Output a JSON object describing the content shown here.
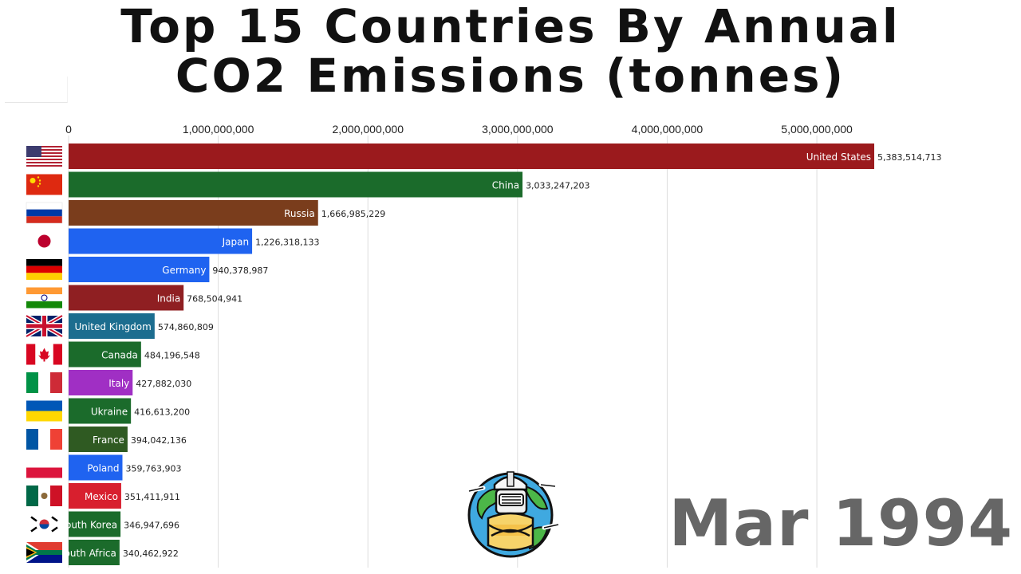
{
  "title_line1": "Top 15 Countries By Annual",
  "title_line2": "CO2 Emissions (tonnes)",
  "date_label": "Mar 1994",
  "colors": {
    "dark_red": "#9b1a1d",
    "green": "#1b6b2b",
    "brown": "#7a3d1c",
    "blue": "#1f63f0",
    "steel_blue": "#1c6d8f",
    "purple": "#a02fc4",
    "olive_green": "#2f5a22",
    "red": "#d81f2e",
    "grid": "#dddddd",
    "date": "#666666"
  },
  "chart_data": {
    "type": "bar",
    "orientation": "horizontal",
    "title": "Top 15 Countries By Annual CO2 Emissions (tonnes)",
    "xlim": [
      0,
      5383514713
    ],
    "x_ticks": [
      0,
      1000000000,
      2000000000,
      3000000000,
      4000000000,
      5000000000
    ],
    "x_tick_labels": [
      "0",
      "1,000,000,000",
      "2,000,000,000",
      "3,000,000,000",
      "4,000,000,000",
      "5,000,000,000"
    ],
    "grid": true,
    "categories": [
      "United States",
      "China",
      "Russia",
      "Japan",
      "Germany",
      "India",
      "United Kingdom",
      "Canada",
      "Italy",
      "Ukraine",
      "France",
      "Poland",
      "Mexico",
      "South Korea",
      "South Africa"
    ],
    "values": [
      5383514713,
      3033247203,
      1666985229,
      1226318133,
      940378987,
      768504941,
      574860809,
      484196548,
      427882030,
      416613200,
      394042136,
      359763903,
      351411911,
      346947696,
      340462922
    ],
    "value_labels": [
      "5,383,514,713",
      "3,033,247,203",
      "1,666,985,229",
      "1,226,318,133",
      "940,378,987",
      "768,504,941",
      "574,860,809",
      "484,196,548",
      "427,882,030",
      "416,613,200",
      "394,042,136",
      "359,763,903",
      "351,411,911",
      "346,947,696",
      "340,462,922"
    ],
    "bar_colors": [
      "#9b1a1d",
      "#1b6b2b",
      "#7a3d1c",
      "#1f63f0",
      "#1f63f0",
      "#8f1f22",
      "#1c6d8f",
      "#1b6b2b",
      "#a02fc4",
      "#1b6b2b",
      "#2f5a22",
      "#1f63f0",
      "#d81f2e",
      "#1b6b2b",
      "#1b6b2b"
    ],
    "flags": [
      "us-flag-icon",
      "cn-flag-icon",
      "ru-flag-icon",
      "jp-flag-icon",
      "de-flag-icon",
      "in-flag-icon",
      "gb-flag-icon",
      "ca-flag-icon",
      "it-flag-icon",
      "ua-flag-icon",
      "fr-flag-icon",
      "pl-flag-icon",
      "mx-flag-icon",
      "kr-flag-icon",
      "za-flag-icon"
    ]
  },
  "mascot_icon": "robot-globe-mascot-icon"
}
